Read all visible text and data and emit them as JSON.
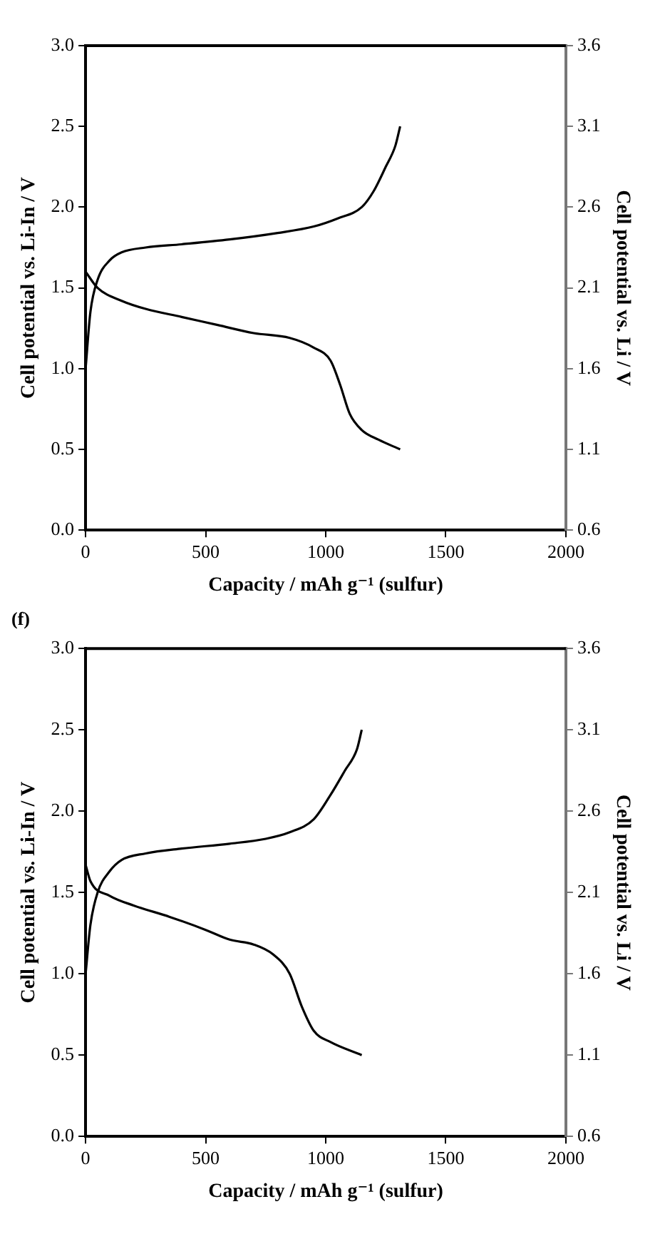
{
  "chart_data": [
    {
      "type": "line",
      "xlabel": "Capacity / mAh g⁻¹ (sulfur)",
      "ylabel": "Cell potential vs. Li-In / V",
      "y2label": "Cell potential vs. Li / V",
      "xlim": [
        0,
        2000
      ],
      "xticks": [
        0,
        500,
        1000,
        1500,
        2000
      ],
      "ylim": [
        0,
        3
      ],
      "yticks": [
        {
          "value": 0,
          "label": "0.0"
        },
        0.5,
        {
          "value": 1,
          "label": "1.0"
        },
        1.5,
        {
          "value": 2,
          "label": "2.0"
        },
        2.5,
        {
          "value": 3,
          "label": "3.0"
        }
      ],
      "y2lim": [
        0.6,
        3.6
      ],
      "y2ticks": [
        0.6,
        1.1,
        1.6,
        2.1,
        2.6,
        3.1,
        3.6
      ],
      "grid": false,
      "legend": false,
      "marker": "none",
      "line_style": "solid",
      "series": [
        {
          "color": "#000000",
          "x": [
            0,
            50,
            150,
            250,
            400,
            550,
            700,
            850,
            950,
            1020,
            1060,
            1100,
            1150,
            1220,
            1310
          ],
          "values": [
            1.6,
            1.5,
            1.42,
            1.37,
            1.32,
            1.27,
            1.22,
            1.19,
            1.13,
            1.05,
            0.9,
            0.72,
            0.62,
            0.56,
            0.5
          ]
        },
        {
          "color": "#000000",
          "x": [
            0,
            20,
            50,
            100,
            150,
            250,
            400,
            600,
            800,
            950,
            1050,
            1150,
            1200,
            1250,
            1290,
            1310
          ],
          "values": [
            1.0,
            1.35,
            1.55,
            1.67,
            1.72,
            1.75,
            1.77,
            1.8,
            1.84,
            1.88,
            1.93,
            2.0,
            2.1,
            2.25,
            2.38,
            2.5
          ]
        }
      ]
    },
    {
      "type": "line",
      "title": "(f)",
      "xlabel": "Capacity / mAh g⁻¹ (sulfur)",
      "ylabel": "Cell potential vs. Li-In / V",
      "y2label": "Cell potential vs. Li / V",
      "xlim": [
        0,
        2000
      ],
      "xticks": [
        0,
        500,
        1000,
        1500,
        2000
      ],
      "ylim": [
        0,
        3
      ],
      "yticks": [
        {
          "value": 0,
          "label": "0.0"
        },
        0.5,
        {
          "value": 1,
          "label": "1.0"
        },
        1.5,
        {
          "value": 2,
          "label": "2.0"
        },
        2.5,
        {
          "value": 3,
          "label": "3.0"
        }
      ],
      "y2lim": [
        0.6,
        3.6
      ],
      "y2ticks": [
        0.6,
        1.1,
        1.6,
        2.1,
        2.6,
        3.1,
        3.6
      ],
      "grid": false,
      "legend": false,
      "marker": "none",
      "line_style": "solid",
      "series": [
        {
          "color": "#000000",
          "x": [
            0,
            20,
            100,
            200,
            350,
            500,
            600,
            700,
            780,
            850,
            900,
            950,
            1020,
            1150
          ],
          "values": [
            1.67,
            1.57,
            1.48,
            1.42,
            1.35,
            1.27,
            1.21,
            1.18,
            1.12,
            1.0,
            0.8,
            0.65,
            0.58,
            0.5
          ]
        },
        {
          "color": "#000000",
          "x": [
            0,
            20,
            50,
            100,
            150,
            250,
            400,
            600,
            750,
            850,
            950,
            1020,
            1080,
            1130,
            1150
          ],
          "values": [
            1.0,
            1.3,
            1.5,
            1.63,
            1.7,
            1.74,
            1.77,
            1.8,
            1.83,
            1.87,
            1.95,
            2.1,
            2.25,
            2.38,
            2.5
          ]
        }
      ]
    }
  ]
}
